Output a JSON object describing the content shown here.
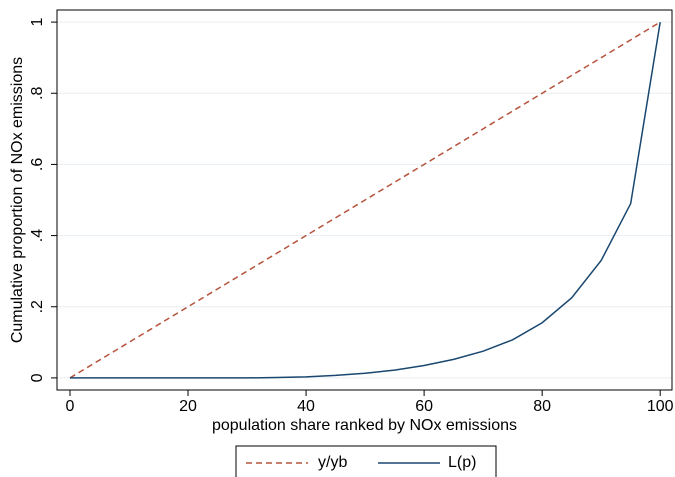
{
  "chart_data": {
    "type": "line",
    "x_label": "population share ranked by NOx emissions",
    "y_label": "Cumulative proportion of NOx emissions",
    "xlim": [
      -2.2,
      102
    ],
    "ylim": [
      -0.034,
      1.034
    ],
    "xticks": [
      0,
      20,
      40,
      60,
      80,
      100
    ],
    "yticks": [
      0,
      {
        "value": 0.2,
        "label": ".2"
      },
      {
        "value": 0.4,
        "label": ".4"
      },
      {
        "value": 0.6,
        "label": ".6"
      },
      {
        "value": 0.8,
        "label": ".8"
      },
      1
    ],
    "grid": true,
    "legend": "bottom",
    "series": [
      {
        "name": "y/yb",
        "color": "#b5533c",
        "dashed": true,
        "x": [
          0,
          100
        ],
        "values": [
          0,
          1
        ]
      },
      {
        "name": "L(p)",
        "color": "#1a476f",
        "dashed": false,
        "x": [
          0,
          5,
          10,
          15,
          20,
          25,
          30,
          35,
          40,
          45,
          50,
          55,
          60,
          65,
          70,
          75,
          80,
          85,
          90,
          95,
          100
        ],
        "values": [
          0,
          0,
          0,
          0,
          0,
          0,
          0,
          0.001,
          0.003,
          0.007,
          0.013,
          0.022,
          0.035,
          0.052,
          0.075,
          0.107,
          0.155,
          0.225,
          0.33,
          0.49,
          1
        ]
      }
    ]
  }
}
